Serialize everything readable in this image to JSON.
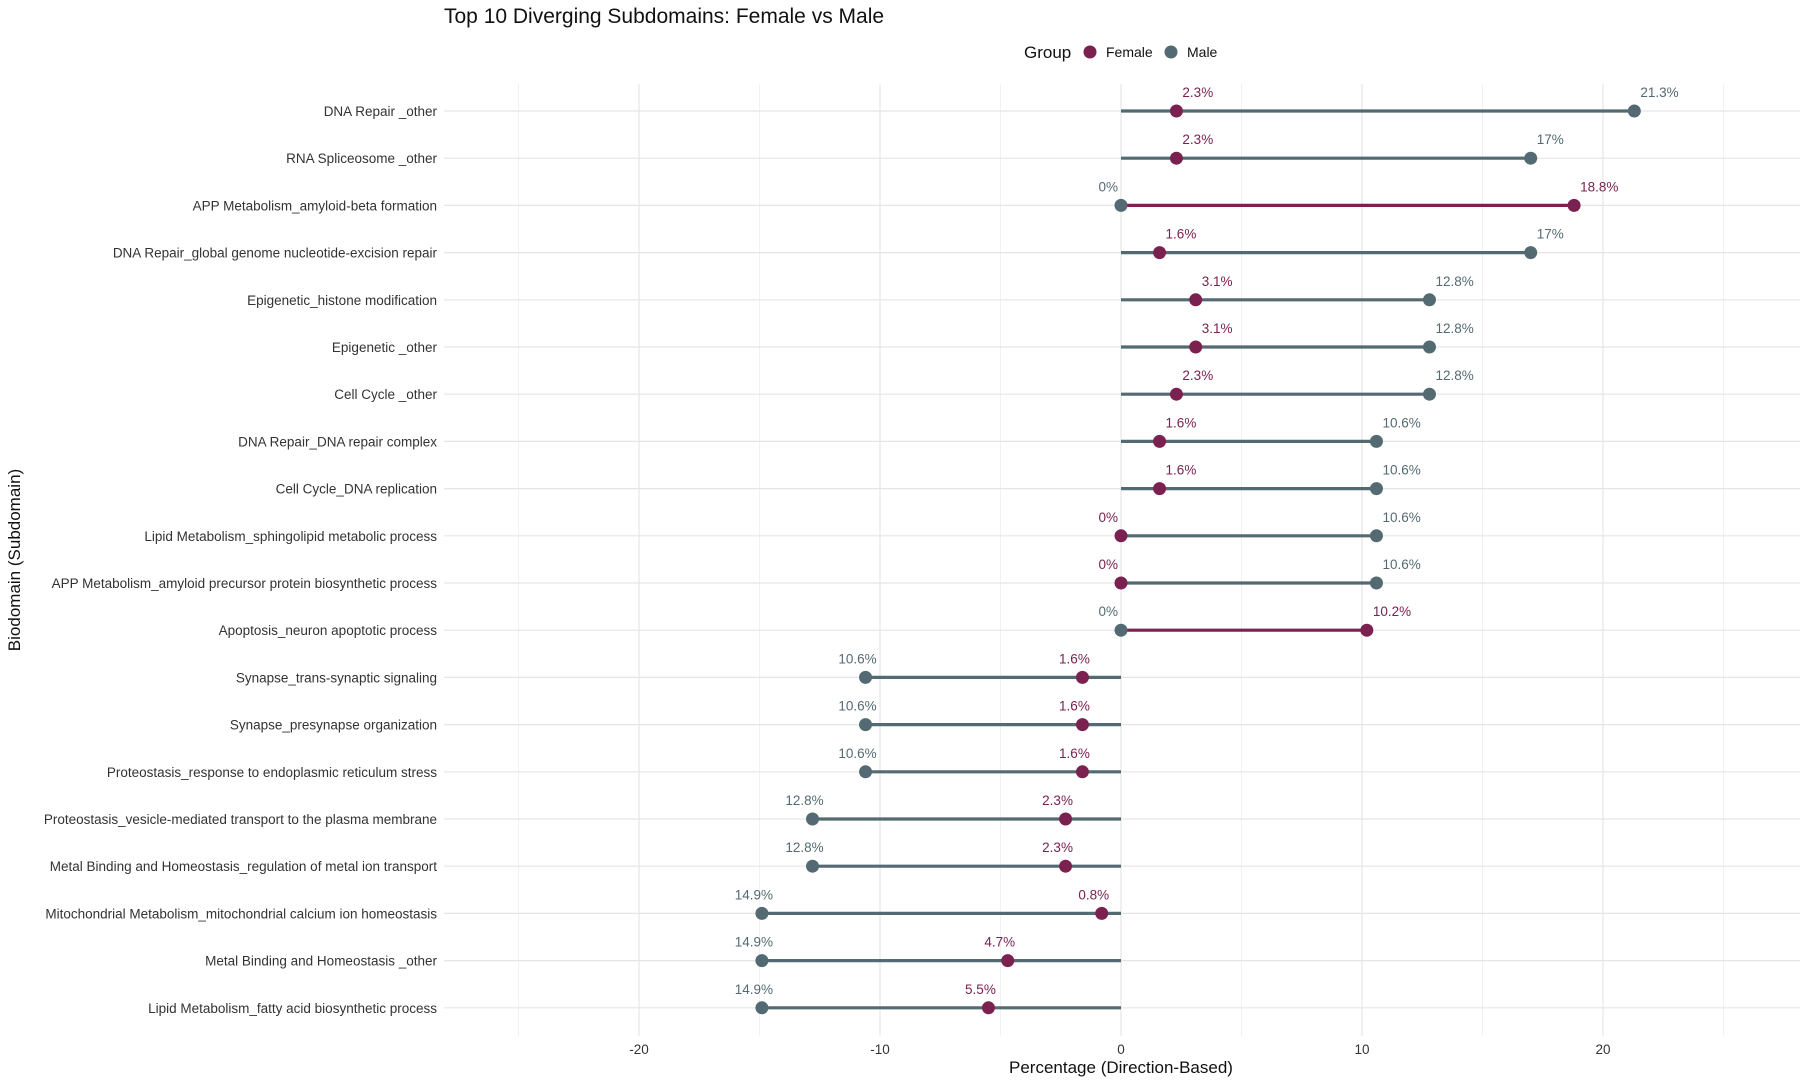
{
  "colors": {
    "female": "#7B2150",
    "male": "#546A72",
    "grid": "#E5E5E5",
    "grid_minor": "#F0F0F0"
  },
  "chart_data": {
    "type": "dumbbell",
    "title": "Top 10 Diverging Subdomains: Female vs Male",
    "xlabel": "Percentage (Direction-Based)",
    "ylabel": "Biodomain (Subdomain)",
    "xlim": [
      -25,
      25
    ],
    "xticks": [
      -20,
      -10,
      0,
      10,
      20
    ],
    "xtick_labels": [
      "-20",
      "-10",
      "0",
      "10",
      "20"
    ],
    "legend": {
      "title": "Group",
      "position": "top",
      "entries": [
        "Female",
        "Male"
      ]
    },
    "rows": [
      {
        "category": "DNA Repair _other",
        "female": 2.3,
        "male": 21.3,
        "female_label": "2.3%",
        "male_label": "21.3%"
      },
      {
        "category": "RNA Spliceosome _other",
        "female": 2.3,
        "male": 17,
        "female_label": "2.3%",
        "male_label": "17%"
      },
      {
        "category": "APP Metabolism_amyloid-beta formation",
        "female": 18.8,
        "male": 0,
        "female_label": "18.8%",
        "male_label": "0%"
      },
      {
        "category": "DNA Repair_global genome nucleotide-excision repair",
        "female": 1.6,
        "male": 17,
        "female_label": "1.6%",
        "male_label": "17%"
      },
      {
        "category": "Epigenetic_histone modification",
        "female": 3.1,
        "male": 12.8,
        "female_label": "3.1%",
        "male_label": "12.8%"
      },
      {
        "category": "Epigenetic _other",
        "female": 3.1,
        "male": 12.8,
        "female_label": "3.1%",
        "male_label": "12.8%"
      },
      {
        "category": "Cell Cycle _other",
        "female": 2.3,
        "male": 12.8,
        "female_label": "2.3%",
        "male_label": "12.8%"
      },
      {
        "category": "DNA Repair_DNA repair complex",
        "female": 1.6,
        "male": 10.6,
        "female_label": "1.6%",
        "male_label": "10.6%"
      },
      {
        "category": "Cell Cycle_DNA replication",
        "female": 1.6,
        "male": 10.6,
        "female_label": "1.6%",
        "male_label": "10.6%"
      },
      {
        "category": "Lipid Metabolism_sphingolipid metabolic process",
        "female": 0,
        "male": 10.6,
        "female_label": "0%",
        "male_label": "10.6%"
      },
      {
        "category": "APP Metabolism_amyloid precursor protein biosynthetic process",
        "female": 0,
        "male": 10.6,
        "female_label": "0%",
        "male_label": "10.6%"
      },
      {
        "category": "Apoptosis_neuron apoptotic process",
        "female": 10.2,
        "male": 0,
        "female_label": "10.2%",
        "male_label": "0%"
      },
      {
        "category": "Synapse_trans-synaptic signaling",
        "female": -1.6,
        "male": -10.6,
        "female_label": "1.6%",
        "male_label": "10.6%"
      },
      {
        "category": "Synapse_presynapse organization",
        "female": -1.6,
        "male": -10.6,
        "female_label": "1.6%",
        "male_label": "10.6%"
      },
      {
        "category": "Proteostasis_response to endoplasmic reticulum stress",
        "female": -1.6,
        "male": -10.6,
        "female_label": "1.6%",
        "male_label": "10.6%"
      },
      {
        "category": "Proteostasis_vesicle-mediated transport to the plasma membrane",
        "female": -2.3,
        "male": -12.8,
        "female_label": "2.3%",
        "male_label": "12.8%"
      },
      {
        "category": "Metal Binding and Homeostasis_regulation of metal ion transport",
        "female": -2.3,
        "male": -12.8,
        "female_label": "2.3%",
        "male_label": "12.8%"
      },
      {
        "category": "Mitochondrial Metabolism_mitochondrial calcium ion homeostasis",
        "female": -0.8,
        "male": -14.9,
        "female_label": "0.8%",
        "male_label": "14.9%"
      },
      {
        "category": "Metal Binding and Homeostasis _other",
        "female": -4.7,
        "male": -14.9,
        "female_label": "4.7%",
        "male_label": "14.9%"
      },
      {
        "category": "Lipid Metabolism_fatty acid biosynthetic process",
        "female": -5.5,
        "male": -14.9,
        "female_label": "5.5%",
        "male_label": "14.9%"
      }
    ]
  }
}
